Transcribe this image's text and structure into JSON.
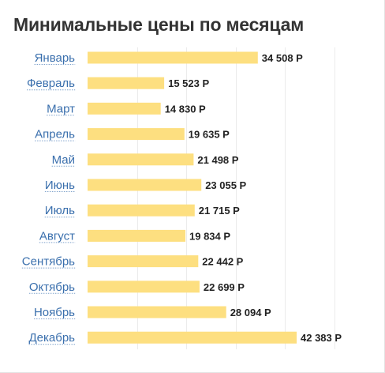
{
  "chart_data": {
    "type": "bar",
    "orientation": "horizontal",
    "title": "Минимальные цены по месяцам",
    "categories": [
      "Январь",
      "Февраль",
      "Март",
      "Апрель",
      "Май",
      "Июнь",
      "Июль",
      "Август",
      "Сентябрь",
      "Октябрь",
      "Ноябрь",
      "Декабрь"
    ],
    "values": [
      34508,
      15523,
      14830,
      19635,
      21498,
      23055,
      21715,
      19834,
      22442,
      22699,
      28094,
      42383
    ],
    "value_labels": [
      "34 508 Р",
      "15 523 Р",
      "14 830 Р",
      "19 635 Р",
      "21 498 Р",
      "23 055 Р",
      "21 715 Р",
      "19 834 Р",
      "22 442 Р",
      "22 699 Р",
      "28 094 Р",
      "42 383 Р"
    ],
    "xlim": [
      0,
      60000
    ],
    "grid": true,
    "bar_color": "#fddf80",
    "label_color": "#3a6fad"
  }
}
